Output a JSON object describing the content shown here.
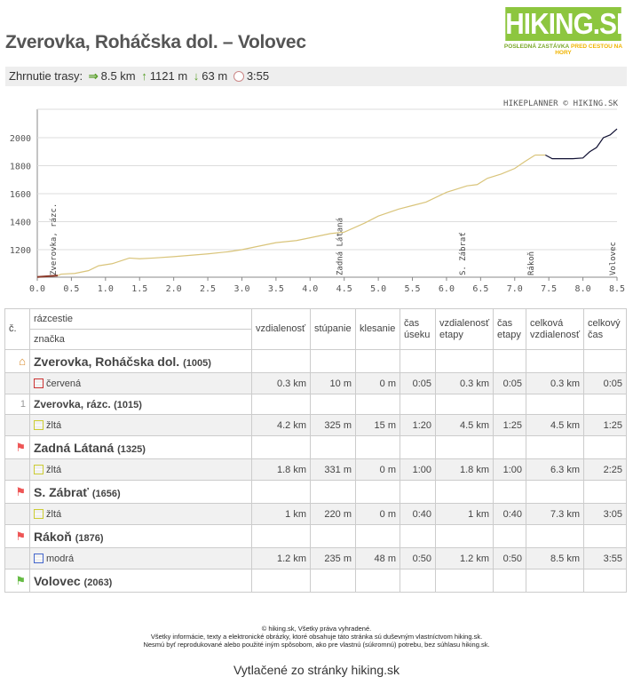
{
  "title": "Zverovka, Roháčska dol. – Volovec",
  "logo": {
    "name": "HIKING.SK",
    "tag1": "POSLEDNÁ ZASTÁVKA",
    "tag2": "PRED CESTOU NA HORY"
  },
  "summary": {
    "label": "Zhrnutie trasy:",
    "distance": "8.5 km",
    "ascent": "1121 m",
    "descent": "63 m",
    "time": "3:55"
  },
  "chart_credit": "HIKEPLANNER © HIKING.SK",
  "chart_data": {
    "type": "line",
    "xlim": [
      0,
      8.5
    ],
    "ylim": [
      1000,
      2120
    ],
    "xticks": [
      "0.0",
      "0.5",
      "1.0",
      "1.5",
      "2.0",
      "2.5",
      "3.0",
      "3.5",
      "4.0",
      "4.5",
      "5.0",
      "5.5",
      "6.0",
      "6.5",
      "7.0",
      "7.5",
      "8.0",
      "8.5"
    ],
    "yticks": [
      1200,
      1400,
      1600,
      1800,
      2000
    ],
    "grid": true,
    "segments": [
      {
        "color": "#8b3a2a",
        "points": [
          [
            0,
            1005
          ],
          [
            0.3,
            1015
          ]
        ]
      },
      {
        "color": "#d9c47a",
        "points": [
          [
            0.3,
            1015
          ],
          [
            0.35,
            1025
          ],
          [
            0.55,
            1030
          ],
          [
            0.75,
            1050
          ],
          [
            0.9,
            1085
          ],
          [
            1.1,
            1100
          ],
          [
            1.35,
            1140
          ],
          [
            1.5,
            1135
          ],
          [
            1.7,
            1140
          ],
          [
            2.0,
            1150
          ],
          [
            2.5,
            1170
          ],
          [
            2.8,
            1185
          ],
          [
            3.0,
            1200
          ],
          [
            3.3,
            1230
          ],
          [
            3.5,
            1250
          ],
          [
            3.8,
            1265
          ],
          [
            4.0,
            1285
          ],
          [
            4.3,
            1315
          ],
          [
            4.5,
            1325
          ],
          [
            4.8,
            1390
          ],
          [
            5.0,
            1440
          ],
          [
            5.3,
            1490
          ],
          [
            5.5,
            1515
          ],
          [
            5.7,
            1540
          ],
          [
            6.0,
            1610
          ],
          [
            6.3,
            1656
          ],
          [
            6.45,
            1665
          ],
          [
            6.6,
            1710
          ],
          [
            6.8,
            1740
          ],
          [
            7.0,
            1780
          ],
          [
            7.15,
            1830
          ],
          [
            7.3,
            1876
          ]
        ]
      },
      {
        "color": "#d9c47a",
        "points": [
          [
            7.3,
            1876
          ],
          [
            7.45,
            1876
          ]
        ]
      },
      {
        "color": "#111133",
        "points": [
          [
            7.45,
            1876
          ],
          [
            7.55,
            1850
          ],
          [
            7.85,
            1850
          ],
          [
            8.0,
            1855
          ],
          [
            8.1,
            1900
          ],
          [
            8.2,
            1930
          ],
          [
            8.3,
            2000
          ],
          [
            8.4,
            2020
          ],
          [
            8.5,
            2063
          ]
        ]
      }
    ],
    "waypoint_labels": [
      {
        "x": 0.3,
        "label": "Zverovka, rázc."
      },
      {
        "x": 4.5,
        "label": "Zadná Látaná"
      },
      {
        "x": 6.3,
        "label": "S. Zábrať"
      },
      {
        "x": 7.3,
        "label": "Rákoň"
      },
      {
        "x": 8.5,
        "label": "Volovec"
      }
    ]
  },
  "table": {
    "headers": {
      "no": "č.",
      "junction": "rázcestie",
      "mark": "značka",
      "dist": "vzdialenosť",
      "ascent": "stúpanie",
      "descent": "klesanie",
      "seg_time": "čas úseku",
      "stage_dist": "vzdialenosť etapy",
      "stage_time": "čas etapy",
      "total_dist": "celková vzdialenosť",
      "total_time": "celkový čas"
    },
    "rows": [
      {
        "type": "wp",
        "icon": "home-icon",
        "no": "",
        "name": "Zverovka, Roháčska dol.",
        "alt": "(1005)"
      },
      {
        "type": "seg",
        "mark": "červená",
        "color": "#c33",
        "values": [
          "0.3 km",
          "10 m",
          "0 m",
          "0:05",
          "0.3 km",
          "0:05",
          "0.3 km",
          "0:05"
        ]
      },
      {
        "type": "wp",
        "icon": "",
        "no": "1",
        "name": "Zverovka, rázc.",
        "alt": "(1015)",
        "small": true
      },
      {
        "type": "seg",
        "mark": "žltá",
        "color": "#cc3",
        "values": [
          "4.2 km",
          "325 m",
          "15 m",
          "1:20",
          "4.5 km",
          "1:25",
          "4.5 km",
          "1:25"
        ]
      },
      {
        "type": "wp",
        "icon": "red-flag-icon",
        "no": "",
        "name": "Zadná Látaná",
        "alt": "(1325)"
      },
      {
        "type": "seg",
        "mark": "žltá",
        "color": "#cc3",
        "values": [
          "1.8 km",
          "331 m",
          "0 m",
          "1:00",
          "1.8 km",
          "1:00",
          "6.3 km",
          "2:25"
        ]
      },
      {
        "type": "wp",
        "icon": "red-flag-icon",
        "no": "",
        "name": "S. Zábrať",
        "alt": "(1656)"
      },
      {
        "type": "seg",
        "mark": "žltá",
        "color": "#cc3",
        "values": [
          "1 km",
          "220 m",
          "0 m",
          "0:40",
          "1 km",
          "0:40",
          "7.3 km",
          "3:05"
        ]
      },
      {
        "type": "wp",
        "icon": "red-flag-icon",
        "no": "",
        "name": "Rákoň",
        "alt": "(1876)"
      },
      {
        "type": "seg",
        "mark": "modrá",
        "color": "#46c",
        "values": [
          "1.2 km",
          "235 m",
          "48 m",
          "0:50",
          "1.2 km",
          "0:50",
          "8.5 km",
          "3:55"
        ]
      },
      {
        "type": "wp",
        "icon": "green-flag-icon",
        "no": "",
        "name": "Volovec",
        "alt": "(2063)"
      }
    ]
  },
  "footer": {
    "line1": "© hiking.sk, Všetky práva vyhradené.",
    "line2": "Všetky informácie, texty a elektronické obrázky, ktoré obsahuje táto stránka sú duševným vlastníctvom hiking.sk.",
    "line3": "Nesmú byť reprodukované alebo použité iným spôsobom, ako pre vlastnú (súkromnú) potrebu, bez súhlasu hiking.sk.",
    "printed": "Vytlačené zo stránky hiking.sk"
  }
}
